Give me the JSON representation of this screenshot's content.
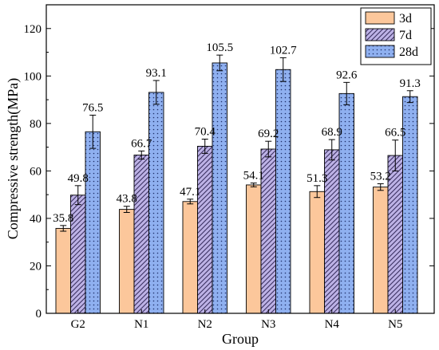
{
  "chart_data": {
    "type": "bar",
    "categories": [
      "G2",
      "N1",
      "N2",
      "N3",
      "N4",
      "N5"
    ],
    "series": [
      {
        "name": "3d",
        "color": "#FCC79B",
        "pattern": "solid",
        "values": [
          35.8,
          43.8,
          47.1,
          54.1,
          51.3,
          53.2
        ],
        "errors": [
          1.2,
          1.3,
          1.0,
          0.8,
          2.5,
          1.4
        ]
      },
      {
        "name": "7d",
        "color": "#BDB2E6",
        "pattern": "diagonal-hatch",
        "values": [
          49.8,
          66.7,
          70.4,
          69.2,
          68.9,
          66.5
        ],
        "errors": [
          4.0,
          1.7,
          3.0,
          3.3,
          4.3,
          6.5
        ]
      },
      {
        "name": "28d",
        "color": "#8FB0F0",
        "pattern": "dots",
        "values": [
          76.5,
          93.1,
          105.5,
          102.7,
          92.6,
          91.3
        ],
        "errors": [
          7.0,
          5.0,
          3.3,
          5.0,
          4.7,
          2.5
        ]
      }
    ],
    "data_labels": [
      [
        "35.8",
        "43.8",
        "47.1",
        "54.1",
        "51.3",
        "53.2"
      ],
      [
        "49.8",
        "66.7",
        "70.4",
        "69.2",
        "68.9",
        "66.5"
      ],
      [
        "76.5",
        "93.1",
        "105.5",
        "102.7",
        "92.6",
        "91.3"
      ]
    ],
    "xlabel": "Group",
    "ylabel": "Compressive strength(MPa)",
    "ylim": [
      0,
      130
    ],
    "yticks": [
      "0",
      "20",
      "40",
      "60",
      "80",
      "100",
      "120"
    ],
    "ytick_values": [
      0,
      20,
      40,
      60,
      80,
      100,
      120
    ],
    "legend_position": "top-right",
    "grid": false
  }
}
